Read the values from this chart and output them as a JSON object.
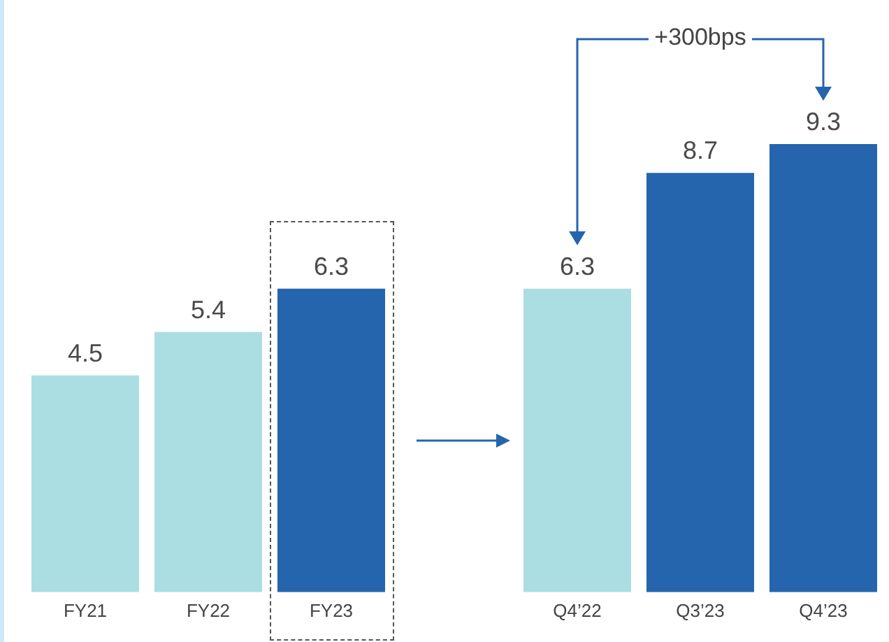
{
  "chart_data": {
    "type": "bar",
    "categories": [
      "FY21",
      "FY22",
      "FY23",
      null,
      "Q4’22",
      "Q3’23",
      "Q4’23"
    ],
    "values": [
      4.5,
      5.4,
      6.3,
      null,
      6.3,
      8.7,
      9.3
    ],
    "colors": [
      "#abdee2",
      "#abdee2",
      "#2565ad",
      null,
      "#abdee2",
      "#2565ad",
      "#2565ad"
    ],
    "data_labels": true,
    "annotations": [
      "+300bps"
    ],
    "legend": false,
    "grid": false
  }
}
